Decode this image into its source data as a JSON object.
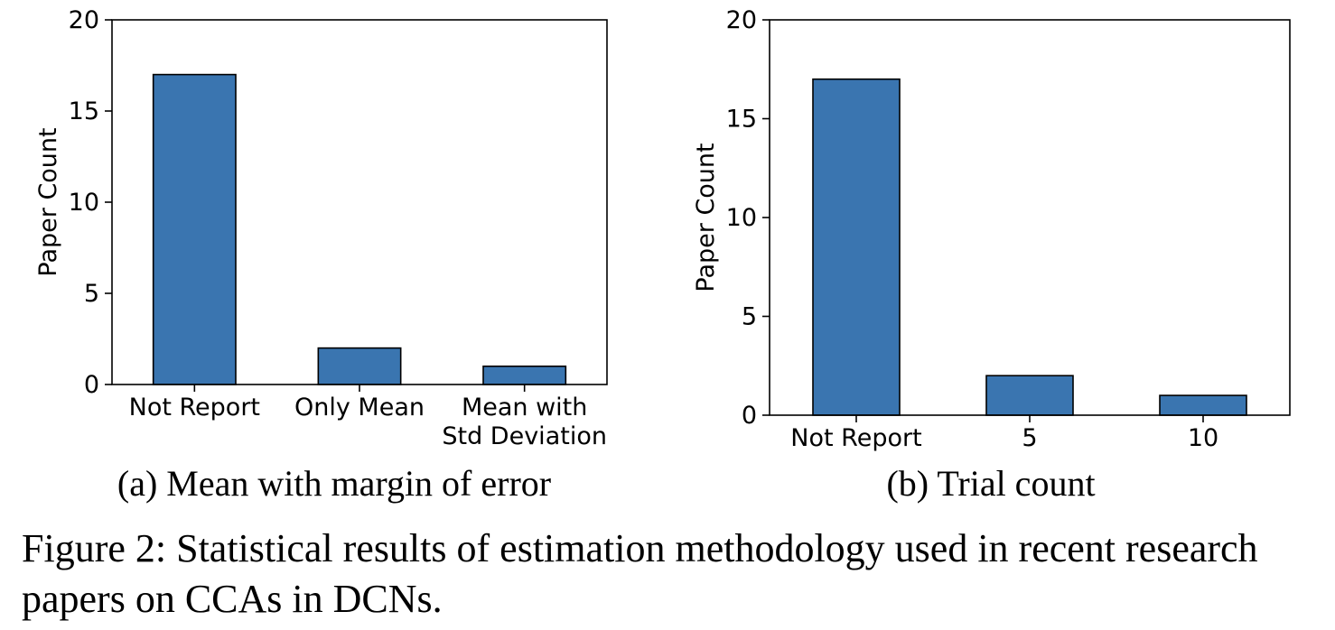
{
  "chart_data": [
    {
      "type": "bar",
      "categories": [
        [
          "Not Report"
        ],
        [
          "Only Mean"
        ],
        [
          "Mean with",
          "Std Deviation"
        ]
      ],
      "values": [
        17,
        2,
        1
      ],
      "ylabel": "Paper Count",
      "xlabel": "",
      "ylim": [
        0,
        20
      ],
      "yticks": [
        0,
        5,
        10,
        15,
        20
      ],
      "bar_color": "#3a75b0",
      "edge_color": "#000000",
      "grid": false
    },
    {
      "type": "bar",
      "categories": [
        [
          "Not Report"
        ],
        [
          "5"
        ],
        [
          "10"
        ]
      ],
      "values": [
        17,
        2,
        1
      ],
      "ylabel": "Paper Count",
      "xlabel": "",
      "ylim": [
        0,
        20
      ],
      "yticks": [
        0,
        5,
        10,
        15,
        20
      ],
      "bar_color": "#3a75b0",
      "edge_color": "#000000",
      "grid": false
    }
  ],
  "subcaptions": {
    "a": "(a) Mean with margin of error",
    "b": "(b) Trial count"
  },
  "figure_caption": "Figure 2: Statistical results of estimation methodology used in recent research papers on CCAs in DCNs."
}
